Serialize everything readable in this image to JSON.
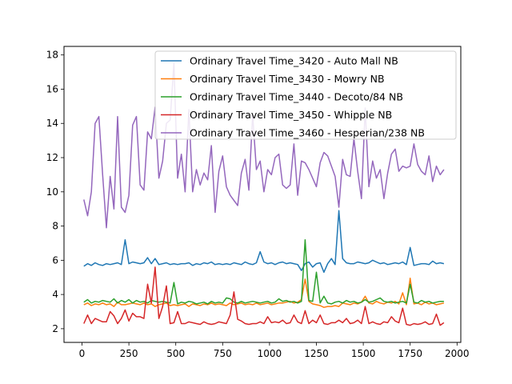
{
  "chart_data": {
    "type": "line",
    "title": "",
    "xlabel": "",
    "ylabel": "",
    "xlim": [
      -96,
      2020
    ],
    "ylim": [
      1.2,
      18.5
    ],
    "xticks": [
      0,
      250,
      500,
      750,
      1000,
      1250,
      1500,
      1750,
      2000
    ],
    "yticks": [
      2,
      4,
      6,
      8,
      10,
      12,
      14,
      16,
      18
    ],
    "grid": false,
    "legend_position": "top-right",
    "x": [
      10,
      30,
      50,
      70,
      90,
      110,
      130,
      150,
      170,
      190,
      210,
      230,
      250,
      270,
      290,
      310,
      330,
      350,
      370,
      390,
      410,
      430,
      450,
      470,
      490,
      510,
      530,
      550,
      570,
      590,
      610,
      630,
      650,
      670,
      690,
      710,
      730,
      750,
      770,
      790,
      810,
      830,
      850,
      870,
      890,
      910,
      930,
      950,
      970,
      990,
      1010,
      1030,
      1050,
      1070,
      1090,
      1110,
      1130,
      1150,
      1170,
      1190,
      1210,
      1230,
      1250,
      1270,
      1290,
      1310,
      1330,
      1350,
      1370,
      1390,
      1410,
      1430,
      1450,
      1470,
      1490,
      1510,
      1530,
      1550,
      1570,
      1590,
      1610,
      1630,
      1650,
      1670,
      1690,
      1710,
      1730,
      1750,
      1770,
      1790,
      1810,
      1830,
      1850,
      1870,
      1890,
      1910,
      1930
    ],
    "series": [
      {
        "name": "Ordinary Travel Time_3420 - Auto Mall NB",
        "color": "#1f77b4",
        "values": [
          5.65,
          5.8,
          5.7,
          5.85,
          5.75,
          5.7,
          5.8,
          5.75,
          5.8,
          5.85,
          5.75,
          7.2,
          5.8,
          5.9,
          5.85,
          5.8,
          5.85,
          6.15,
          5.8,
          6.1,
          5.75,
          5.8,
          5.85,
          5.75,
          5.8,
          5.75,
          5.8,
          5.8,
          5.85,
          5.7,
          5.8,
          5.75,
          5.85,
          5.8,
          5.9,
          5.75,
          5.8,
          5.75,
          5.8,
          5.75,
          5.85,
          5.8,
          5.75,
          5.9,
          5.8,
          5.75,
          5.85,
          6.5,
          5.9,
          5.8,
          5.85,
          5.75,
          5.85,
          5.9,
          5.8,
          5.85,
          5.8,
          5.75,
          5.4,
          5.8,
          5.9,
          5.6,
          5.8,
          5.85,
          5.3,
          5.8,
          6.1,
          5.75,
          8.9,
          6.1,
          5.85,
          5.8,
          5.8,
          5.9,
          5.85,
          5.8,
          5.85,
          6.0,
          5.9,
          5.8,
          5.85,
          5.75,
          5.8,
          5.85,
          5.8,
          5.9,
          5.75,
          6.75,
          5.7,
          5.75,
          5.8,
          5.8,
          5.75,
          5.95,
          5.8,
          5.85,
          5.8
        ]
      },
      {
        "name": "Ordinary Travel Time_3430 - Mowry NB",
        "color": "#ff7f0e",
        "values": [
          3.4,
          3.5,
          3.35,
          3.45,
          3.4,
          3.5,
          3.4,
          3.45,
          3.3,
          3.55,
          3.4,
          3.4,
          3.45,
          3.5,
          3.45,
          3.4,
          3.5,
          3.4,
          3.45,
          3.3,
          3.4,
          3.45,
          3.5,
          3.35,
          3.4,
          3.35,
          3.4,
          3.45,
          3.3,
          3.45,
          3.4,
          3.35,
          3.45,
          3.4,
          3.5,
          3.4,
          3.45,
          3.4,
          3.35,
          3.5,
          3.4,
          3.45,
          3.5,
          3.4,
          3.45,
          3.4,
          3.5,
          3.4,
          3.45,
          3.5,
          3.4,
          3.45,
          3.5,
          3.5,
          3.55,
          3.6,
          3.5,
          3.55,
          3.7,
          4.9,
          3.6,
          3.45,
          3.4,
          3.35,
          3.25,
          3.3,
          3.3,
          3.35,
          3.3,
          3.5,
          3.45,
          3.4,
          3.5,
          3.45,
          3.55,
          3.9,
          3.5,
          3.45,
          3.6,
          3.5,
          3.45,
          3.55,
          3.5,
          3.6,
          3.45,
          4.1,
          3.4,
          4.95,
          3.45,
          3.5,
          3.4,
          3.55,
          3.45,
          3.5,
          3.4,
          3.45,
          3.5
        ]
      },
      {
        "name": "Ordinary Travel Time_3440 - Decoto/84 NB",
        "color": "#2ca02c",
        "values": [
          3.55,
          3.7,
          3.5,
          3.6,
          3.55,
          3.65,
          3.6,
          3.55,
          3.75,
          3.5,
          3.65,
          3.55,
          3.7,
          3.5,
          3.65,
          3.55,
          3.6,
          3.5,
          3.65,
          3.6,
          3.55,
          3.6,
          3.55,
          3.5,
          4.7,
          3.45,
          3.55,
          3.5,
          3.6,
          3.55,
          3.45,
          3.5,
          3.55,
          3.45,
          3.6,
          3.5,
          3.55,
          3.5,
          3.8,
          3.75,
          3.55,
          3.5,
          3.6,
          3.5,
          3.55,
          3.6,
          3.55,
          3.5,
          3.55,
          3.6,
          3.5,
          3.55,
          3.75,
          3.6,
          3.65,
          3.55,
          3.6,
          3.5,
          3.6,
          7.2,
          3.65,
          3.6,
          5.3,
          3.5,
          3.9,
          3.5,
          3.45,
          3.55,
          3.6,
          3.5,
          3.65,
          3.55,
          3.6,
          3.5,
          3.55,
          3.7,
          3.55,
          3.6,
          3.7,
          3.8,
          3.6,
          3.55,
          3.6,
          3.5,
          3.55,
          3.6,
          3.5,
          4.6,
          3.55,
          3.5,
          3.65,
          3.55,
          3.6,
          3.5,
          3.55,
          3.6,
          3.6
        ]
      },
      {
        "name": "Ordinary Travel Time_3450 - Whipple NB",
        "color": "#d62728",
        "values": [
          2.3,
          2.8,
          2.3,
          2.6,
          2.5,
          2.4,
          2.4,
          3.0,
          2.75,
          2.3,
          2.6,
          3.1,
          2.45,
          2.9,
          2.7,
          2.7,
          2.6,
          4.6,
          3.5,
          5.6,
          2.6,
          3.3,
          4.5,
          2.3,
          2.35,
          3.0,
          2.3,
          2.3,
          2.4,
          2.35,
          2.3,
          2.25,
          2.4,
          2.3,
          2.25,
          2.3,
          2.4,
          2.35,
          2.3,
          2.8,
          4.15,
          2.55,
          2.45,
          2.3,
          2.25,
          2.3,
          2.3,
          2.4,
          2.3,
          2.7,
          2.35,
          2.4,
          2.35,
          2.5,
          2.3,
          2.35,
          2.8,
          2.4,
          2.3,
          3.05,
          2.3,
          2.5,
          2.35,
          2.8,
          2.3,
          2.25,
          2.35,
          2.35,
          2.5,
          2.35,
          2.6,
          2.3,
          2.35,
          2.5,
          2.3,
          3.3,
          2.3,
          2.4,
          2.3,
          2.25,
          2.4,
          2.35,
          2.7,
          2.45,
          2.35,
          3.2,
          2.25,
          2.2,
          2.3,
          2.25,
          2.3,
          2.4,
          2.25,
          2.3,
          2.85,
          2.2,
          2.35
        ]
      },
      {
        "name": "Ordinary Travel Time_3460 - Hesperian/238 NB",
        "color": "#9467bd",
        "values": [
          9.55,
          8.6,
          10.0,
          14.0,
          14.4,
          11.0,
          7.9,
          10.9,
          9.0,
          14.4,
          9.1,
          8.8,
          9.8,
          13.9,
          14.4,
          10.4,
          10.1,
          13.5,
          13.1,
          14.95,
          10.8,
          11.8,
          14.0,
          14.2,
          17.5,
          10.8,
          12.2,
          10.0,
          14.8,
          10.0,
          11.3,
          10.4,
          11.1,
          10.7,
          12.7,
          8.8,
          11.2,
          12.1,
          10.3,
          9.8,
          9.5,
          9.2,
          11.1,
          11.9,
          10.1,
          14.5,
          11.3,
          11.8,
          10.0,
          11.3,
          11.0,
          12.0,
          12.2,
          10.4,
          10.2,
          10.4,
          12.8,
          9.8,
          11.8,
          11.7,
          11.3,
          10.8,
          10.3,
          11.7,
          12.3,
          12.1,
          11.5,
          10.9,
          9.1,
          11.9,
          11.0,
          10.9,
          13.1,
          11.2,
          9.6,
          14.9,
          10.3,
          11.8,
          10.8,
          11.3,
          9.6,
          11.1,
          12.2,
          12.5,
          11.2,
          11.5,
          11.4,
          11.5,
          12.8,
          11.6,
          11.2,
          11.0,
          12.1,
          10.6,
          11.5,
          11.0,
          11.3
        ]
      }
    ]
  }
}
